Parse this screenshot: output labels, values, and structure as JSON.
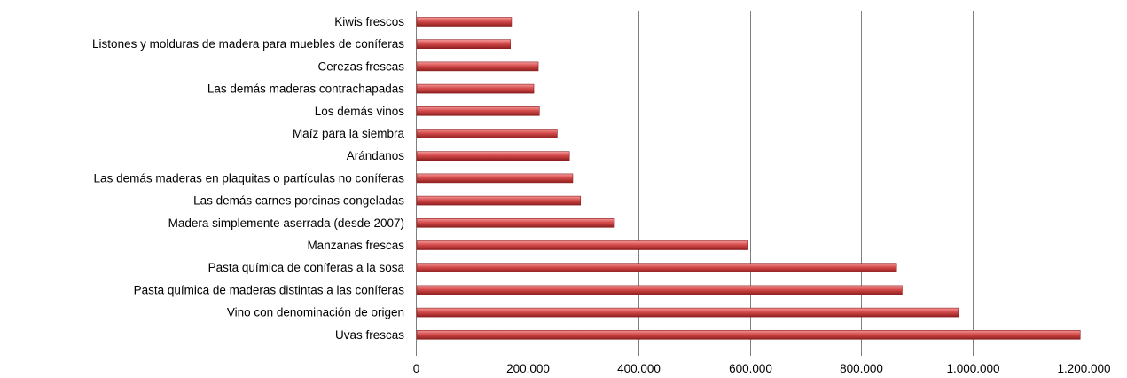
{
  "chart_data": {
    "type": "bar",
    "orientation": "horizontal",
    "categories": [
      "Kiwis frescos",
      "Listones y molduras de madera para muebles de coníferas",
      "Cerezas frescas",
      "Las demás maderas contrachapadas",
      "Los demás vinos",
      "Maíz para la siembra",
      "Arándanos ",
      "Las demás maderas en plaquitas o partículas no coníferas",
      "Las demás carnes porcinas congeladas",
      "Madera simplemente aserrada (desde 2007)",
      "Manzanas frescas",
      "Pasta química de coníferas a la sosa ",
      "Pasta química de maderas distintas a las coníferas",
      "Vino con denominación de origen ",
      "Uvas frescas"
    ],
    "values": [
      172000,
      170000,
      220000,
      212000,
      222000,
      254000,
      276000,
      282000,
      296000,
      357000,
      597000,
      864000,
      874000,
      975000,
      1194000
    ],
    "xlim": [
      0,
      1200000
    ],
    "tick_labels": [
      "0",
      "200.000",
      "400.000",
      "600.000",
      "800.000",
      "1.000.000",
      "1.200.000"
    ],
    "title": "",
    "xlabel": "",
    "ylabel": "",
    "grid": "vertical",
    "legend": "none",
    "bar_color": "#d64b4b",
    "bar_color_light": "#f29a9a",
    "bar_color_dark": "#8e1f1f"
  }
}
